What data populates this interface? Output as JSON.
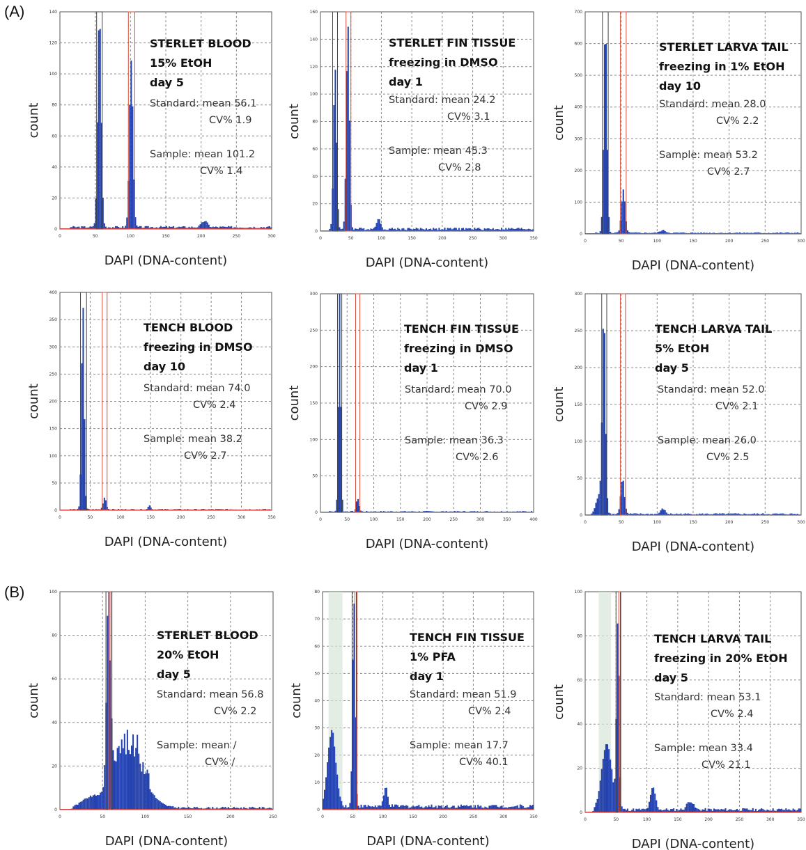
{
  "section_labels": {
    "a": "(A)",
    "b": "(B)"
  },
  "axis": {
    "xlabel": "DAPI (DNA-content)",
    "ylabel": "count"
  },
  "colors": {
    "histogram": "#2443b0",
    "standard_gate": "#444444",
    "sample_gate": "#d64b3a",
    "gate_shade": "#d8e6d8"
  },
  "chart_data": [
    {
      "type": "bar",
      "title_lines": [
        "STERLET BLOOD",
        "15% EtOH",
        "day 5"
      ],
      "xlim": [
        0,
        300
      ],
      "ylim": [
        0,
        140
      ],
      "xticks": [
        0,
        50,
        100,
        150,
        200,
        250,
        300
      ],
      "yticks": [
        0,
        20,
        40,
        60,
        80,
        100,
        120,
        140
      ],
      "standard": {
        "mean": "56.1",
        "cv": "1.9",
        "label_mean": "Standard: mean 56.1",
        "label_cv": "CV% 1.9"
      },
      "sample": {
        "mean": "101.2",
        "cv": "1.4",
        "label_mean": "Sample: mean 101.2",
        "label_cv": "CV% 1.4"
      },
      "peaks": [
        [
          56,
          138,
          2.5
        ],
        [
          101,
          108,
          2.5
        ],
        [
          205,
          4,
          4
        ]
      ],
      "background": 1.5,
      "shade": null,
      "gates": [
        [
          52,
          60
        ],
        [
          97,
          106
        ]
      ]
    },
    {
      "type": "bar",
      "title_lines": [
        "STERLET FIN TISSUE",
        "freezing in DMSO",
        "day 1"
      ],
      "xlim": [
        0,
        350
      ],
      "ylim": [
        0,
        160
      ],
      "xticks": [
        0,
        50,
        100,
        150,
        200,
        250,
        300,
        350
      ],
      "yticks": [
        0,
        20,
        40,
        60,
        80,
        100,
        120,
        140,
        160
      ],
      "standard": {
        "mean": "24.2",
        "cv": "3.1",
        "label_mean": "Standard: mean 24.2",
        "label_cv": "CV% 3.1"
      },
      "sample": {
        "mean": "45.3",
        "cv": "2.8",
        "label_mean": "Sample: mean 45.3",
        "label_cv": "CV% 2.8"
      },
      "peaks": [
        [
          24,
          118,
          2.5
        ],
        [
          45,
          150,
          2.5
        ],
        [
          95,
          8,
          3
        ]
      ],
      "background": 2,
      "shade": null,
      "gates": [
        [
          20,
          28
        ],
        [
          42,
          50
        ]
      ]
    },
    {
      "type": "bar",
      "title_lines": [
        "STERLET LARVA TAIL",
        "freezing in 1% EtOH",
        "day 10"
      ],
      "xlim": [
        0,
        300
      ],
      "ylim": [
        0,
        700
      ],
      "xticks": [
        0,
        50,
        100,
        150,
        200,
        250,
        300
      ],
      "yticks": [
        0,
        100,
        200,
        300,
        400,
        500,
        600,
        700
      ],
      "standard": {
        "mean": "28.0",
        "cv": "2.2",
        "label_mean": "Standard: mean 28.0",
        "label_cv": "CV% 2.2"
      },
      "sample": {
        "mean": "53.2",
        "cv": "2.7",
        "label_mean": "Sample: mean 53.2",
        "label_cv": "CV% 2.7"
      },
      "peaks": [
        [
          28,
          660,
          2.2
        ],
        [
          53,
          135,
          2.5
        ],
        [
          108,
          8,
          4
        ]
      ],
      "background": 4,
      "shade": null,
      "gates": [
        [
          24,
          32
        ],
        [
          49,
          57
        ]
      ]
    },
    {
      "type": "bar",
      "title_lines": [
        "TENCH BLOOD",
        "freezing in DMSO",
        "day 10"
      ],
      "xlim": [
        0,
        350
      ],
      "ylim": [
        0,
        400
      ],
      "xticks": [
        0,
        50,
        100,
        150,
        200,
        250,
        300,
        350
      ],
      "yticks": [
        0,
        50,
        100,
        150,
        200,
        250,
        300,
        350,
        400
      ],
      "standard": {
        "mean": "74.0",
        "cv": "2.4",
        "label_mean": "Standard: mean 74.0",
        "label_cv": "CV% 2.4"
      },
      "sample": {
        "mean": "38.2",
        "cv": "2.7",
        "label_mean": "Sample: mean 38.2",
        "label_cv": "CV% 2.7"
      },
      "peaks": [
        [
          38,
          380,
          2.2
        ],
        [
          74,
          22,
          2.5
        ],
        [
          148,
          8,
          2
        ]
      ],
      "background": 2,
      "shade": null,
      "gates": [
        [
          34,
          44
        ],
        [
          70,
          78
        ]
      ]
    },
    {
      "type": "bar",
      "title_lines": [
        "TENCH FIN TISSUE",
        "freezing in DMSO",
        "day 1"
      ],
      "xlim": [
        0,
        400
      ],
      "ylim": [
        0,
        300
      ],
      "xticks": [
        0,
        50,
        100,
        150,
        200,
        250,
        300,
        350,
        400
      ],
      "yticks": [
        0,
        50,
        100,
        150,
        200,
        250,
        300
      ],
      "standard": {
        "mean": "70.0",
        "cv": "2.9",
        "label_mean": "Standard: mean 70.0",
        "label_cv": "CV% 2.9"
      },
      "sample": {
        "mean": "36.3",
        "cv": "2.6",
        "label_mean": "Sample: mean 36.3",
        "label_cv": "CV% 2.6"
      },
      "peaks": [
        [
          36,
          300,
          2.2
        ],
        [
          70,
          18,
          2.5
        ]
      ],
      "background": 1.5,
      "shade": null,
      "gates": [
        [
          32,
          40
        ],
        [
          66,
          74
        ]
      ]
    },
    {
      "type": "bar",
      "title_lines": [
        "TENCH LARVA TAIL",
        "5% EtOH",
        "day 5"
      ],
      "xlim": [
        0,
        300
      ],
      "ylim": [
        0,
        300
      ],
      "xticks": [
        0,
        50,
        100,
        150,
        200,
        250,
        300
      ],
      "yticks": [
        0,
        50,
        100,
        150,
        200,
        250,
        300
      ],
      "standard": {
        "mean": "52.0",
        "cv": "2.1",
        "label_mean": "Standard: mean 52.0",
        "label_cv": "CV% 2.1"
      },
      "sample": {
        "mean": "26.0",
        "cv": "2.5",
        "label_mean": "Sample: mean 26.0",
        "label_cv": "CV% 2.5"
      },
      "peaks": [
        [
          26,
          262,
          2.2
        ],
        [
          52,
          48,
          2.5
        ],
        [
          20,
          25,
          5
        ],
        [
          108,
          7,
          3
        ]
      ],
      "background": 2,
      "shade": null,
      "gates": [
        [
          23,
          30
        ],
        [
          49,
          56
        ]
      ]
    },
    {
      "type": "bar",
      "title_lines": [
        "STERLET BLOOD",
        "20% EtOH",
        "day 5"
      ],
      "xlim": [
        0,
        250
      ],
      "ylim": [
        0,
        100
      ],
      "xticks": [
        0,
        50,
        100,
        150,
        200,
        250
      ],
      "yticks": [
        0,
        20,
        40,
        60,
        80,
        100
      ],
      "standard": {
        "mean": "56.8",
        "cv": "2.2",
        "label_mean": "Standard: mean 56.8",
        "label_cv": "CV% 2.2"
      },
      "sample": {
        "mean": "/",
        "cv": "/",
        "label_mean": "Sample: mean /",
        "label_cv": "CV% /"
      },
      "peaks": [
        [
          57,
          90,
          2.2
        ],
        [
          80,
          24,
          18
        ],
        [
          35,
          4,
          10
        ]
      ],
      "background": 1,
      "shade": null,
      "gates": [
        [
          54,
          61
        ]
      ]
    },
    {
      "type": "bar",
      "title_lines": [
        "TENCH FIN TISSUE",
        "1% PFA",
        "day 1"
      ],
      "xlim": [
        0,
        350
      ],
      "ylim": [
        0,
        80
      ],
      "xticks": [
        0,
        50,
        100,
        150,
        200,
        250,
        300,
        350
      ],
      "yticks": [
        0,
        10,
        20,
        30,
        40,
        50,
        60,
        70,
        80
      ],
      "standard": {
        "mean": "51.9",
        "cv": "2.4",
        "label_mean": "Standard: mean 51.9",
        "label_cv": "CV% 2.4"
      },
      "sample": {
        "mean": "17.7",
        "cv": "40.1",
        "label_mean": "Sample: mean 17.7",
        "label_cv": "CV% 40.1"
      },
      "peaks": [
        [
          52,
          76,
          2.2
        ],
        [
          15,
          28,
          7
        ],
        [
          105,
          7,
          3
        ]
      ],
      "background": 1.5,
      "shade": [
        10,
        33
      ],
      "gates": [
        [
          49,
          56
        ]
      ]
    },
    {
      "type": "bar",
      "title_lines": [
        "TENCH LARVA TAIL",
        "freezing in 20% EtOH",
        "day 5"
      ],
      "xlim": [
        0,
        350
      ],
      "ylim": [
        0,
        100
      ],
      "xticks": [
        0,
        50,
        100,
        150,
        200,
        250,
        300,
        350
      ],
      "yticks": [
        0,
        20,
        40,
        60,
        80,
        100
      ],
      "standard": {
        "mean": "53.1",
        "cv": "2.4",
        "label_mean": "Standard: mean 53.1",
        "label_cv": "CV% 2.4"
      },
      "sample": {
        "mean": "33.4",
        "cv": "21.1",
        "label_mean": "Sample: mean 33.4",
        "label_cv": "CV% 21.1"
      },
      "peaks": [
        [
          53,
          84,
          2.2
        ],
        [
          35,
          30,
          8
        ],
        [
          110,
          10,
          4
        ],
        [
          170,
          4,
          5
        ]
      ],
      "background": 1.5,
      "shade": [
        22,
        42
      ],
      "gates": [
        [
          50,
          57
        ]
      ]
    }
  ]
}
